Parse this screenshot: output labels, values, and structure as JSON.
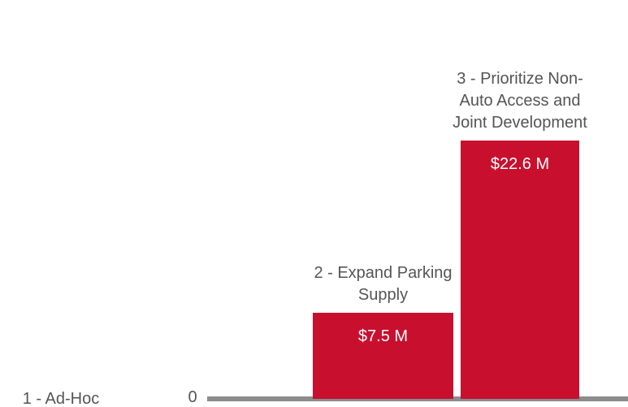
{
  "chart_data": {
    "type": "bar",
    "categories": [
      "1 - Ad-Hoc",
      "2 - Expand Parking Supply",
      "3 - Prioritize Non-Auto Access and Joint Development"
    ],
    "values": [
      0,
      7.5,
      22.6
    ],
    "value_labels": [
      "0",
      "$7.5 M",
      "$22.6 M"
    ],
    "color": "#c8102e"
  }
}
